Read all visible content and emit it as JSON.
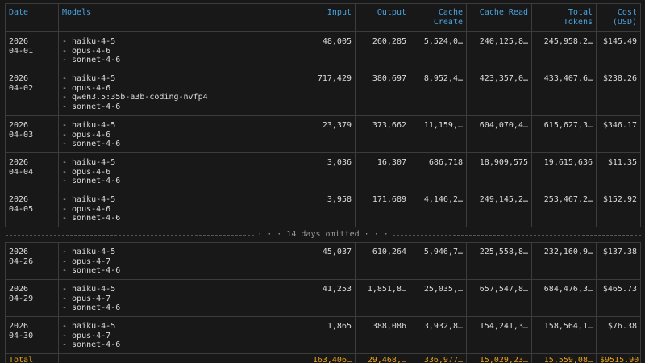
{
  "headers": {
    "date": "Date",
    "models": "Models",
    "input": "Input",
    "output": "Output",
    "cache_create_1": "Cache",
    "cache_create_2": "Create",
    "cache_read": "Cache Read",
    "total_tokens_1": "Total",
    "total_tokens_2": "Tokens",
    "cost_1": "Cost",
    "cost_2": "(USD)"
  },
  "rows": [
    {
      "date_year": "2026",
      "date_md": "04-01",
      "models": [
        "- haiku-4-5",
        "- opus-4-6",
        "- sonnet-4-6"
      ],
      "input": "48,005",
      "output": "260,285",
      "cache_create": "5,524,0…",
      "cache_read": "240,125,8…",
      "total_tokens": "245,958,2…",
      "cost": "$145.49"
    },
    {
      "date_year": "2026",
      "date_md": "04-02",
      "models": [
        "- haiku-4-5",
        "- opus-4-6",
        "- qwen3.5:35b-a3b-coding-nvfp4",
        "- sonnet-4-6"
      ],
      "input": "717,429",
      "output": "380,697",
      "cache_create": "8,952,4…",
      "cache_read": "423,357,0…",
      "total_tokens": "433,407,6…",
      "cost": "$238.26"
    },
    {
      "date_year": "2026",
      "date_md": "04-03",
      "models": [
        "- haiku-4-5",
        "- opus-4-6",
        "- sonnet-4-6"
      ],
      "input": "23,379",
      "output": "373,662",
      "cache_create": "11,159,…",
      "cache_read": "604,070,4…",
      "total_tokens": "615,627,3…",
      "cost": "$346.17"
    },
    {
      "date_year": "2026",
      "date_md": "04-04",
      "models": [
        "- haiku-4-5",
        "- opus-4-6",
        "- sonnet-4-6"
      ],
      "input": "3,036",
      "output": "16,307",
      "cache_create": "686,718",
      "cache_read": "18,909,575",
      "total_tokens": "19,615,636",
      "cost": "$11.35"
    },
    {
      "date_year": "2026",
      "date_md": "04-05",
      "models": [
        "- haiku-4-5",
        "- opus-4-6",
        "- sonnet-4-6"
      ],
      "input": "3,958",
      "output": "171,689",
      "cache_create": "4,146,2…",
      "cache_read": "249,145,2…",
      "total_tokens": "253,467,2…",
      "cost": "$152.92"
    }
  ],
  "omitted_text": "14 days omitted",
  "rows_after": [
    {
      "date_year": "2026",
      "date_md": "04-26",
      "models": [
        "- haiku-4-5",
        "- opus-4-7",
        "- sonnet-4-6"
      ],
      "input": "45,037",
      "output": "610,264",
      "cache_create": "5,946,7…",
      "cache_read": "225,558,8…",
      "total_tokens": "232,160,9…",
      "cost": "$137.38"
    },
    {
      "date_year": "2026",
      "date_md": "04-29",
      "models": [
        "- haiku-4-5",
        "- opus-4-7",
        "- sonnet-4-6"
      ],
      "input": "41,253",
      "output": "1,851,8…",
      "cache_create": "25,035,…",
      "cache_read": "657,547,8…",
      "total_tokens": "684,476,3…",
      "cost": "$465.73"
    },
    {
      "date_year": "2026",
      "date_md": "04-30",
      "models": [
        "- haiku-4-5",
        "- opus-4-7",
        "- sonnet-4-6"
      ],
      "input": "1,865",
      "output": "388,086",
      "cache_create": "3,932,8…",
      "cache_read": "154,241,3…",
      "total_tokens": "158,564,1…",
      "cost": "$76.38"
    }
  ],
  "total": {
    "label": "Total",
    "input": "163,406…",
    "output": "29,468,…",
    "cache_create": "336,977…",
    "cache_read": "15,029,23…",
    "total_tokens": "15,559,08…",
    "cost": "$9515.90"
  },
  "colors": {
    "background": "#181818",
    "header": "#4aa3df",
    "total": "#e8a317",
    "text": "#dcdcdc",
    "border": "#3c3c3c"
  }
}
